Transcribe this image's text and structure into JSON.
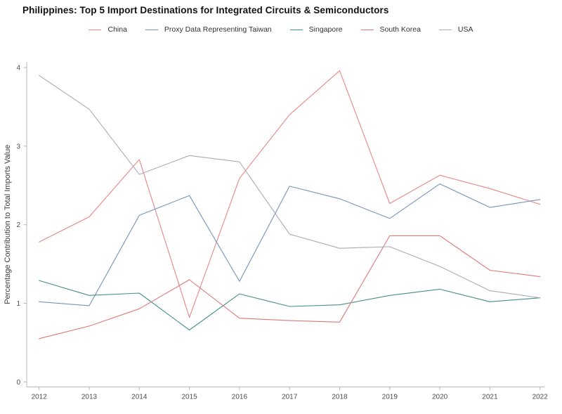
{
  "title": "Philippines: Top 5 Import Destinations for Integrated Circuits & Semiconductors",
  "chart_data": {
    "type": "line",
    "title": "Philippines: Top 5 Import Destinations for Integrated Circuits & Semiconductors",
    "xlabel": "",
    "ylabel": "Percentage Contribution to Total Imports Value",
    "categories": [
      2012,
      2013,
      2014,
      2015,
      2016,
      2017,
      2018,
      2019,
      2020,
      2021,
      2022
    ],
    "y_ticks": [
      0,
      1,
      2,
      3,
      4
    ],
    "ylim": [
      0,
      4
    ],
    "grid": false,
    "legend_position": "top-center",
    "series": [
      {
        "name": "China",
        "color": "#e88787",
        "values": [
          1.78,
          2.1,
          2.83,
          0.82,
          2.59,
          3.4,
          3.96,
          2.27,
          2.63,
          2.46,
          2.26
        ]
      },
      {
        "name": "Proxy Data Representing Taiwan",
        "color": "#7593be",
        "values": [
          1.02,
          0.97,
          2.12,
          2.37,
          1.28,
          2.49,
          2.33,
          2.08,
          2.52,
          2.22,
          2.32
        ]
      },
      {
        "name": "Singapore",
        "color": "#478f87",
        "values": [
          1.29,
          1.1,
          1.13,
          0.66,
          1.12,
          0.96,
          0.98,
          1.1,
          1.18,
          1.02,
          1.07
        ]
      },
      {
        "name": "South Korea",
        "color": "#dd7878",
        "values": [
          0.55,
          0.71,
          0.93,
          1.3,
          0.81,
          0.78,
          0.76,
          1.86,
          1.86,
          1.42,
          1.34
        ]
      },
      {
        "name": "USA",
        "color": "#a8aabb",
        "values": [
          3.9,
          3.47,
          2.64,
          2.88,
          2.8,
          1.88,
          1.7,
          1.72,
          1.47,
          1.16,
          1.07
        ]
      }
    ]
  }
}
